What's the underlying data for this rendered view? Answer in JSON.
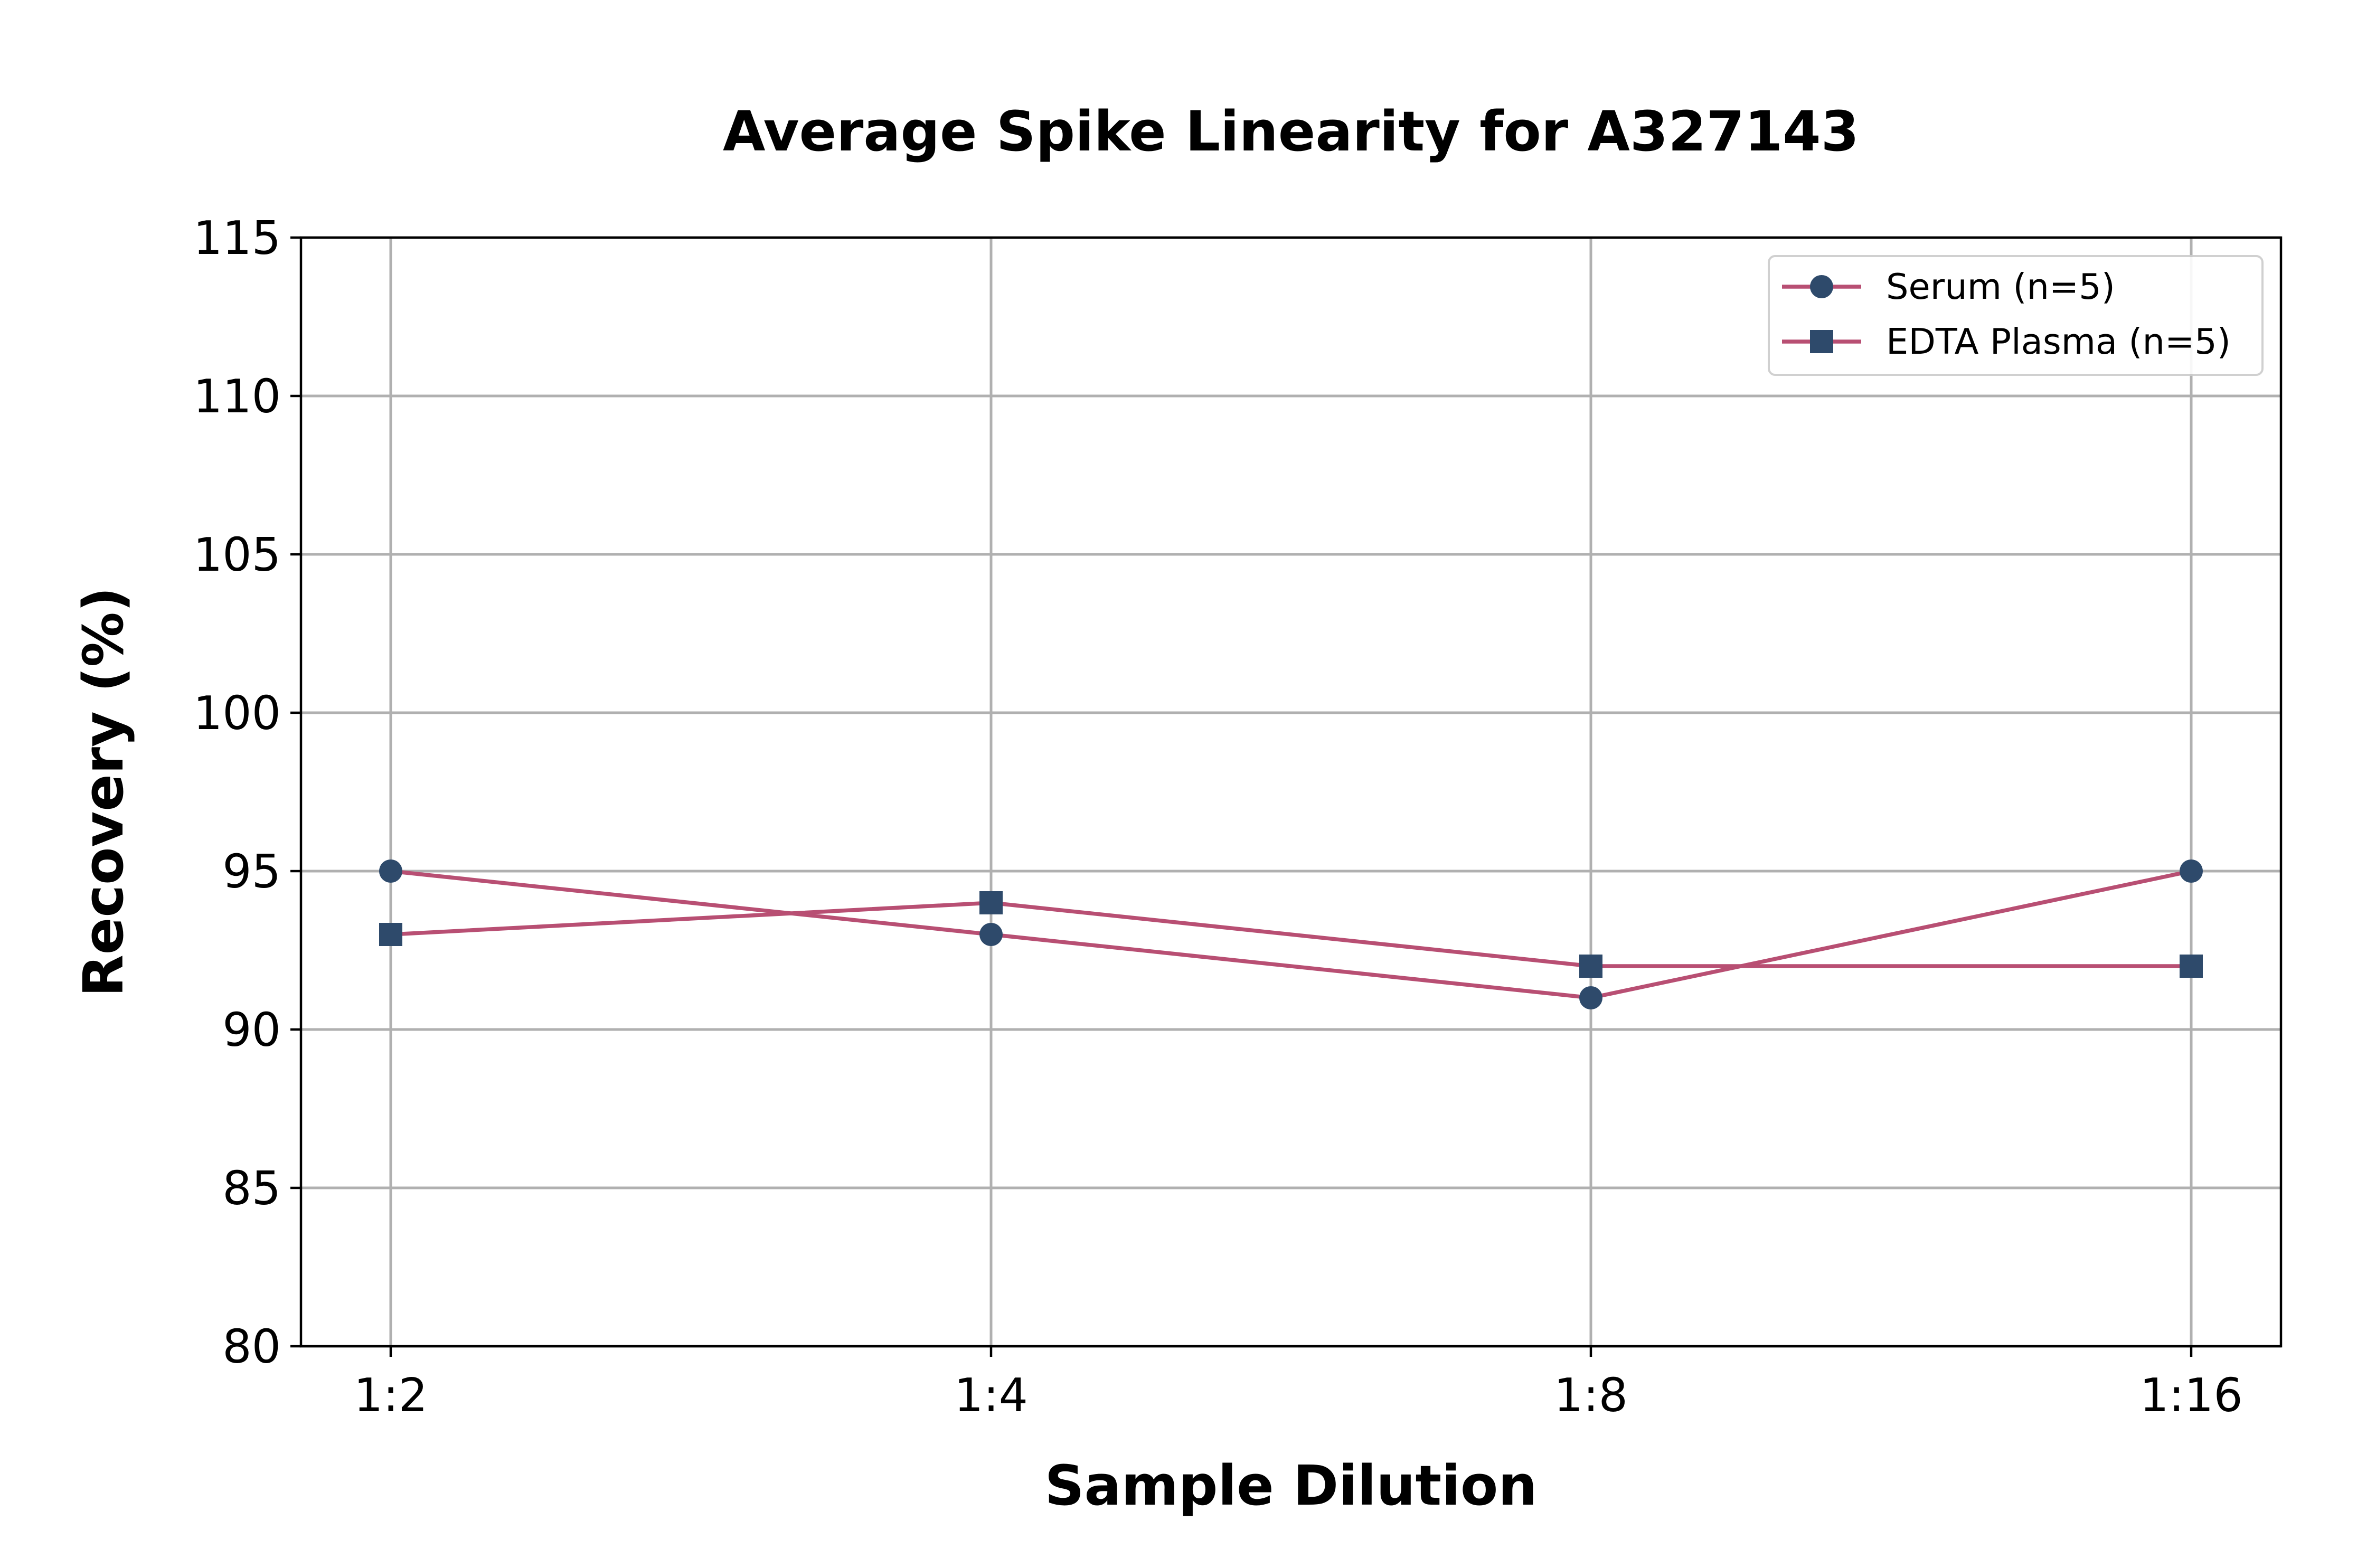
{
  "chart_data": {
    "type": "line",
    "title": "Average Spike Linearity for A327143",
    "xlabel": "Sample Dilution",
    "ylabel": "Recovery (%)",
    "categories": [
      "1:2",
      "1:4",
      "1:8",
      "1:16"
    ],
    "ylim": [
      80,
      115
    ],
    "yticks": [
      80,
      85,
      90,
      95,
      100,
      105,
      110,
      115
    ],
    "grid": true,
    "legend_position": "top-right",
    "series": [
      {
        "name": "Serum (n=5)",
        "values": [
          95,
          93,
          91,
          95
        ],
        "marker": "circle"
      },
      {
        "name": "EDTA Plasma (n=5)",
        "values": [
          93,
          94,
          92,
          92
        ],
        "marker": "square"
      }
    ],
    "colors": {
      "line": "#b84f73",
      "marker": "#2e4a6b"
    }
  }
}
